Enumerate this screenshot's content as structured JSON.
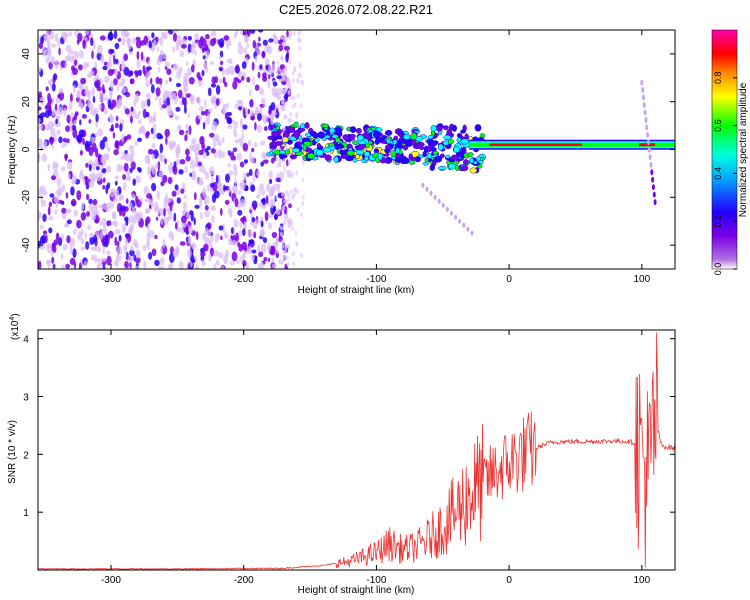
{
  "title": "C2E5.2026.072.08.22.R21",
  "colors": {
    "spectrogram": [
      "#7a00e6",
      "#2a00ff",
      "#00ffff",
      "#00ff00",
      "#ffff00",
      "#ff0000",
      "#ff00ff"
    ],
    "snr_line": "#ee3333"
  },
  "chart_data": [
    {
      "type": "heatmap",
      "xlabel": "Height of straight line (km)",
      "ylabel": "Frequency (Hz)",
      "xlim": [
        -355,
        125
      ],
      "ylim": [
        -50,
        50
      ],
      "xticks": [
        "-300",
        "-200",
        "-100",
        "0",
        "100"
      ],
      "yticks": [
        "-40",
        "-20",
        "0",
        "20",
        "40"
      ],
      "colorbar": {
        "label": "Normalized spectral amplitude",
        "ticks": [
          "0.0",
          "0.2",
          "0.4",
          "0.6",
          "0.8"
        ],
        "range": [
          0,
          1
        ]
      },
      "features": [
        {
          "feature": "broadband noise",
          "x_range": [
            -355,
            -165
          ],
          "y_range": [
            -50,
            50
          ],
          "amplitude": 0.05
        },
        {
          "feature": "turbulent band",
          "x_range": [
            -180,
            -20
          ],
          "y_range": [
            -10,
            10
          ],
          "amplitude": 0.45
        },
        {
          "feature": "narrow carrier line",
          "x_range": [
            -30,
            125
          ],
          "y_center": 2,
          "amplitude": 0.95
        },
        {
          "feature": "descending streak",
          "x": [
            -65,
            -28
          ],
          "y": [
            -15,
            -35
          ],
          "amplitude": 0.1
        },
        {
          "feature": "feature near 100 km",
          "x": [
            100,
            110
          ],
          "y": [
            28,
            -22
          ],
          "amplitude": 0.15
        }
      ]
    },
    {
      "type": "line",
      "xlabel": "Height of straight line (km)",
      "ylabel": "SNR (10 * v/v)",
      "scale_label": "(x10",
      "scale_exponent": "4",
      "xlim": [
        -355,
        125
      ],
      "ylim": [
        0,
        4.15
      ],
      "xticks": [
        "-300",
        "-200",
        "-100",
        "0",
        "100"
      ],
      "yticks": [
        "1",
        "2",
        "3",
        "4"
      ],
      "series": [
        {
          "x": [
            -355,
            -250,
            -170,
            -140,
            -120,
            -100,
            -90,
            -80,
            -70,
            -60,
            -50,
            -40,
            -30,
            -20,
            -10,
            0,
            10,
            20,
            30,
            40,
            60,
            80,
            90,
            95,
            100,
            105,
            110,
            115,
            125
          ],
          "y": [
            0.02,
            0.02,
            0.03,
            0.08,
            0.15,
            0.3,
            0.45,
            0.35,
            0.4,
            0.55,
            0.75,
            1.0,
            1.3,
            1.5,
            1.7,
            1.85,
            2.0,
            2.1,
            2.2,
            2.22,
            2.22,
            2.23,
            2.22,
            2.2,
            2.0,
            1.5,
            2.6,
            2.15,
            2.1
          ]
        }
      ]
    }
  ]
}
